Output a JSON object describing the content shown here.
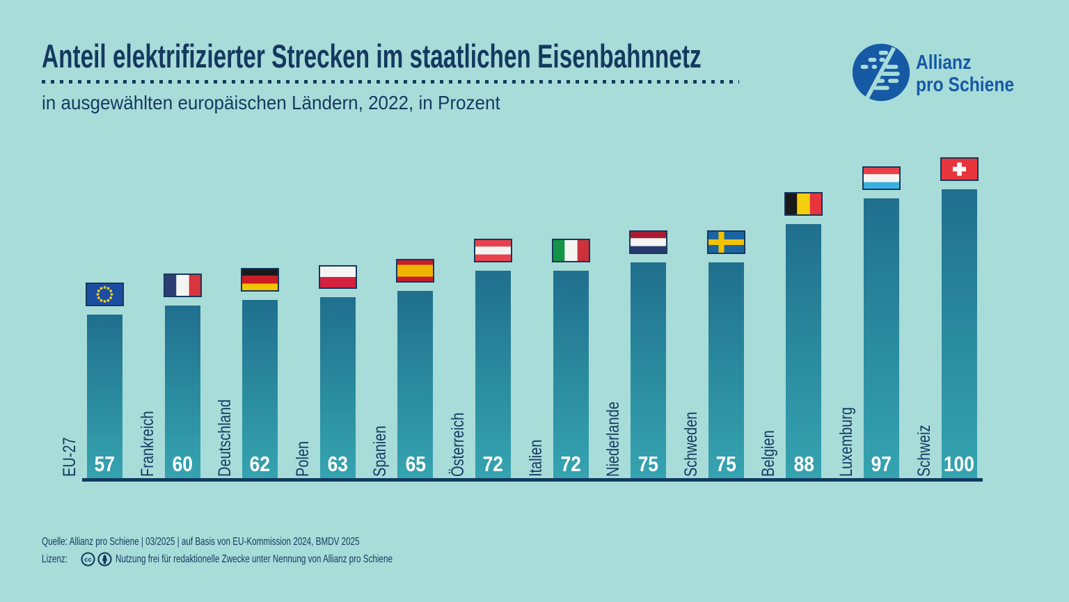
{
  "header": {
    "title": "Anteil elektrifizierter Strecken im staatlichen Eisenbahnnetz",
    "subtitle": "in ausgewählten europäischen Ländern, 2022, in Prozent"
  },
  "logo": {
    "line1": "Allianz",
    "line2": "pro Schiene"
  },
  "chart_data": {
    "type": "bar",
    "title": "Anteil elektrifizierter Strecken im staatlichen Eisenbahnnetz",
    "subtitle": "in ausgewählten europäischen Ländern, 2022, in Prozent",
    "categories": [
      "EU-27",
      "Frankreich",
      "Deutschland",
      "Polen",
      "Spanien",
      "Österreich",
      "Italien",
      "Niederlande",
      "Schweden",
      "Belgien",
      "Luxemburg",
      "Schweiz"
    ],
    "values": [
      57,
      60,
      62,
      63,
      65,
      72,
      72,
      75,
      75,
      88,
      97,
      100
    ],
    "flags": [
      "eu",
      "france",
      "germany",
      "poland",
      "spain",
      "austria",
      "italy",
      "netherlands",
      "sweden",
      "belgium",
      "luxembourg",
      "switzerland"
    ],
    "unit": "Prozent",
    "xlabel": "",
    "ylabel": "",
    "ylim": [
      0,
      100
    ],
    "grid": false,
    "legend": "none",
    "value_labels": "inside-bottom, white",
    "bar_color_top": "#206f8e",
    "bar_color_bottom": "#36a4b1"
  },
  "footer": {
    "source": "Quelle: Allianz pro Schiene | 03/2025 | auf Basis von EU-Kommission 2024, BMDV 2025",
    "license_label": "Lizenz:",
    "license_icons": [
      "cc-icon",
      "by-icon"
    ],
    "license_text": "Nutzung frei für redaktionelle Zwecke unter Nennung von Allianz pro Schiene"
  },
  "colors": {
    "background": "#a8dcd9",
    "text_navy": "#14395f",
    "logo_blue": "#1659a5",
    "axis": "#123a5e",
    "value_text": "#ffffff"
  }
}
